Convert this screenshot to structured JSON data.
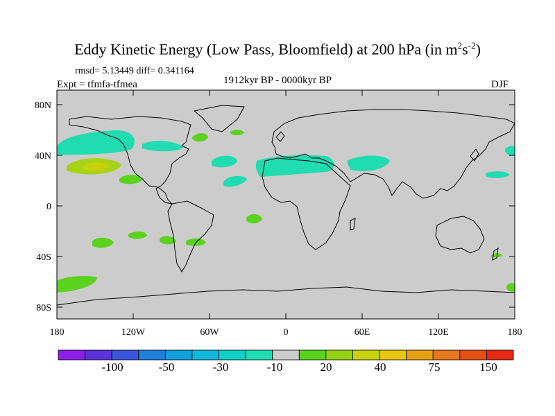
{
  "title": "Eddy Kinetic Energy (Low Pass, Bloomfield) at 200 hPa (in m",
  "title_sup1": "2",
  "title_mid": "s",
  "title_sup2": "-2",
  "title_end": ")",
  "stats": "rmsd= 5.13449 diff= 0.341164",
  "experiment": "Expt = tfmfa-tfmea",
  "period": "1912kyr BP - 0000kyr BP",
  "season": "DJF",
  "y_axis": [
    "80N",
    "40N",
    "0",
    "40S",
    "80S"
  ],
  "x_axis": [
    "180",
    "120W",
    "60W",
    "0",
    "60E",
    "120E",
    "180"
  ],
  "colorbar": {
    "colors": [
      "#8a1ee6",
      "#5a32d8",
      "#3a55dc",
      "#1f7fdc",
      "#12a0dc",
      "#10b9dc",
      "#10d0c8",
      "#20dcb0",
      "#cccccc",
      "#5ad21e",
      "#96d214",
      "#c8d20a",
      "#e6c80a",
      "#e6a014",
      "#e6781e",
      "#e65014",
      "#e62814"
    ],
    "labels": [
      "-100",
      "-50",
      "-30",
      "-10",
      "20",
      "40",
      "75",
      "150"
    ]
  },
  "map": {
    "land_color": "#cccccc",
    "fill_colors": {
      "teal": "#20dcb0",
      "light_green": "#5ad21e",
      "yellow_green": "#a8d214"
    }
  }
}
